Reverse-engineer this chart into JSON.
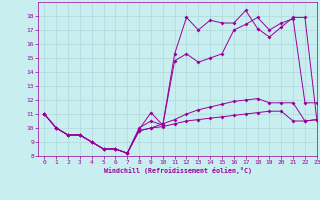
{
  "xlabel": "Windchill (Refroidissement éolien,°C)",
  "background_color": "#c8eef0",
  "grid_color": "#b0d8da",
  "line_color": "#990099",
  "x_values": [
    0,
    1,
    2,
    3,
    4,
    5,
    6,
    7,
    8,
    9,
    10,
    11,
    12,
    13,
    14,
    15,
    16,
    17,
    18,
    19,
    20,
    21,
    22,
    23
  ],
  "line1": [
    11.0,
    10.0,
    9.5,
    9.5,
    9.0,
    8.5,
    8.5,
    8.2,
    9.8,
    10.0,
    10.1,
    10.3,
    10.5,
    10.6,
    10.7,
    10.8,
    10.9,
    11.0,
    11.1,
    11.2,
    11.2,
    10.5,
    10.5,
    10.6
  ],
  "line2": [
    11.0,
    10.0,
    9.5,
    9.5,
    9.0,
    8.5,
    8.5,
    8.2,
    9.8,
    10.0,
    10.3,
    10.6,
    11.0,
    11.3,
    11.5,
    11.7,
    11.9,
    12.0,
    12.1,
    11.8,
    11.8,
    11.8,
    10.5,
    10.6
  ],
  "line3": [
    11.0,
    10.0,
    9.5,
    9.5,
    9.0,
    8.5,
    8.5,
    8.2,
    9.9,
    11.1,
    10.2,
    14.8,
    15.3,
    14.7,
    15.0,
    15.3,
    17.0,
    17.4,
    17.9,
    17.0,
    17.5,
    17.8,
    11.8,
    11.8
  ],
  "line4": [
    11.0,
    10.0,
    9.5,
    9.5,
    9.0,
    8.5,
    8.5,
    8.2,
    10.0,
    10.5,
    10.2,
    15.3,
    17.9,
    17.0,
    17.7,
    17.5,
    17.5,
    18.4,
    17.1,
    16.5,
    17.2,
    17.9,
    17.9,
    10.6
  ],
  "ylim": [
    8,
    19
  ],
  "xlim": [
    -0.5,
    23
  ],
  "yticks": [
    8,
    9,
    10,
    11,
    12,
    13,
    14,
    15,
    16,
    17,
    18
  ],
  "xticks": [
    0,
    1,
    2,
    3,
    4,
    5,
    6,
    7,
    8,
    9,
    10,
    11,
    12,
    13,
    14,
    15,
    16,
    17,
    18,
    19,
    20,
    21,
    22,
    23
  ]
}
